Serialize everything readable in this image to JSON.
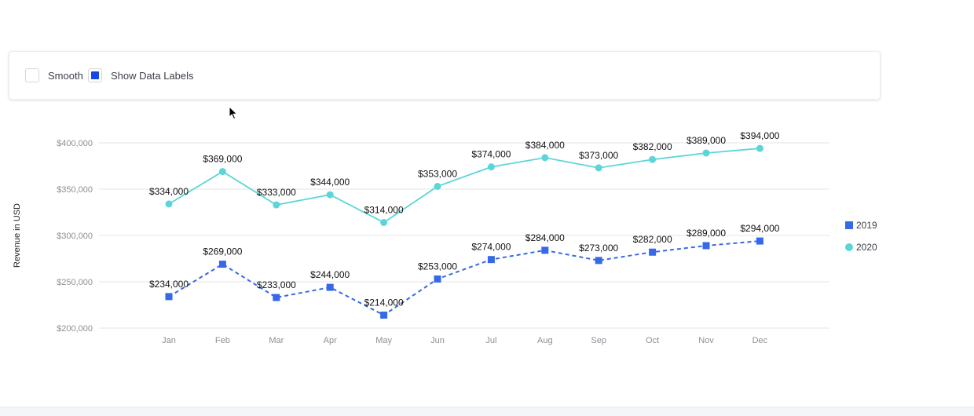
{
  "options": {
    "smooth": {
      "label": "Smooth",
      "checked": false
    },
    "show_data_labels": {
      "label": "Show Data Labels",
      "checked": true
    },
    "accent_color": "#1648e6"
  },
  "chart_data": {
    "type": "line",
    "categories": [
      "Jan",
      "Feb",
      "Mar",
      "Apr",
      "May",
      "Jun",
      "Jul",
      "Aug",
      "Sep",
      "Oct",
      "Nov",
      "Dec"
    ],
    "ylabel": "Revenue in USD",
    "ylim": [
      200000,
      400000
    ],
    "yticks": [
      400000,
      350000,
      300000,
      250000,
      200000
    ],
    "ytick_labels": [
      "$400,000",
      "$350,000",
      "$300,000",
      "$250,000",
      "$200,000"
    ],
    "grid": true,
    "legend_position": "right",
    "series": [
      {
        "name": "2019",
        "color": "#3569e6",
        "line_style": "dashed",
        "marker": "square",
        "values": [
          234000,
          269000,
          233000,
          244000,
          214000,
          253000,
          274000,
          284000,
          273000,
          282000,
          289000,
          294000
        ],
        "data_labels": [
          "$234,000",
          "$269,000",
          "$233,000",
          "$244,000",
          "$214,000",
          "$253,000",
          "$274,000",
          "$284,000",
          "$273,000",
          "$282,000",
          "$289,000",
          "$294,000"
        ]
      },
      {
        "name": "2020",
        "color": "#5cd5d8",
        "line_style": "solid",
        "marker": "circle",
        "values": [
          334000,
          369000,
          333000,
          344000,
          314000,
          353000,
          374000,
          384000,
          373000,
          382000,
          389000,
          394000
        ],
        "data_labels": [
          "$334,000",
          "$369,000",
          "$333,000",
          "$344,000",
          "$314,000",
          "$353,000",
          "$374,000",
          "$384,000",
          "$373,000",
          "$382,000",
          "$389,000",
          "$394,000"
        ]
      }
    ]
  }
}
